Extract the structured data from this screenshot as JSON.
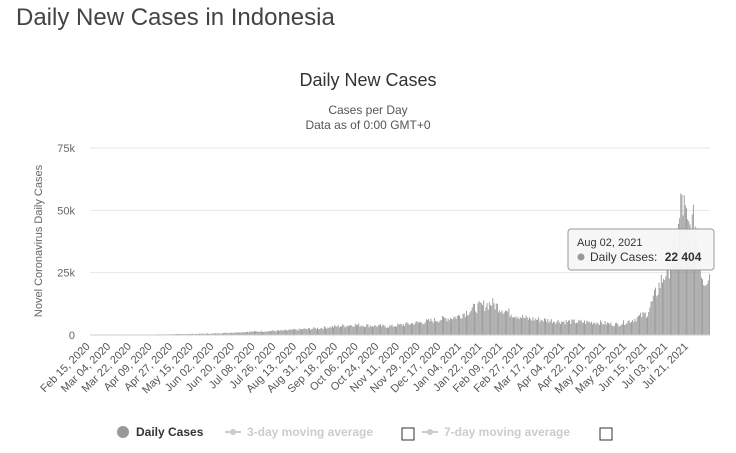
{
  "page": {
    "heading": "Daily New Cases in Indonesia"
  },
  "chart_data": {
    "type": "bar",
    "title": "Daily New Cases",
    "subtitle_line1": "Cases per Day",
    "subtitle_line2": "Data as of 0:00 GMT+0",
    "ylabel": "Novel Coronavirus Daily Cases",
    "xlabel": "",
    "ylim": [
      0,
      75000
    ],
    "y_ticks": [
      {
        "value": 0,
        "label": "0"
      },
      {
        "value": 25000,
        "label": "25k"
      },
      {
        "value": 50000,
        "label": "50k"
      },
      {
        "value": 75000,
        "label": "75k"
      }
    ],
    "x_start": "2020-02-15",
    "x_end": "2021-08-08",
    "x_tick_labels": [
      "Feb 15, 2020",
      "Mar 04, 2020",
      "Mar 22, 2020",
      "Apr 09, 2020",
      "Apr 27, 2020",
      "May 15, 2020",
      "Jun 02, 2020",
      "Jun 20, 2020",
      "Jul 08, 2020",
      "Jul 26, 2020",
      "Aug 13, 2020",
      "Aug 31, 2020",
      "Sep 18, 2020",
      "Oct 06, 2020",
      "Oct 24, 2020",
      "Nov 11, 2020",
      "Nov 29, 2020",
      "Dec 17, 2020",
      "Jan 04, 2021",
      "Jan 22, 2021",
      "Feb 09, 2021",
      "Feb 27, 2021",
      "Mar 17, 2021",
      "Apr 04, 2021",
      "Apr 22, 2021",
      "May 10, 2021",
      "May 28, 2021",
      "Jun 15, 2021",
      "Jul 03, 2021",
      "Jul 21, 2021"
    ],
    "grid": true,
    "legend_position": "bottom",
    "series": [
      {
        "name": "Daily Cases",
        "color": "#999999",
        "trend_anchors": [
          [
            "2020-02-15",
            0
          ],
          [
            "2020-03-04",
            10
          ],
          [
            "2020-04-01",
            150
          ],
          [
            "2020-05-01",
            350
          ],
          [
            "2020-06-01",
            600
          ],
          [
            "2020-07-01",
            1300
          ],
          [
            "2020-08-01",
            1800
          ],
          [
            "2020-09-01",
            2800
          ],
          [
            "2020-10-01",
            4200
          ],
          [
            "2020-11-01",
            3500
          ],
          [
            "2020-12-01",
            5300
          ],
          [
            "2020-12-31",
            7500
          ],
          [
            "2021-01-15",
            11000
          ],
          [
            "2021-01-30",
            13000
          ],
          [
            "2021-02-15",
            9000
          ],
          [
            "2021-03-01",
            6800
          ],
          [
            "2021-04-01",
            5500
          ],
          [
            "2021-05-01",
            5200
          ],
          [
            "2021-05-20",
            4300
          ],
          [
            "2021-06-01",
            6000
          ],
          [
            "2021-06-15",
            9000
          ],
          [
            "2021-06-25",
            20000
          ],
          [
            "2021-07-05",
            30000
          ],
          [
            "2021-07-12",
            42000
          ],
          [
            "2021-07-15",
            56000
          ],
          [
            "2021-07-20",
            43000
          ],
          [
            "2021-07-27",
            45000
          ],
          [
            "2021-08-02",
            22404
          ],
          [
            "2021-08-08",
            25000
          ]
        ]
      },
      {
        "name": "3-day moving average",
        "color": "#cccccc",
        "visible": false
      },
      {
        "name": "7-day moving average",
        "color": "#cccccc",
        "visible": false
      }
    ],
    "tooltip": {
      "date": "Aug 02, 2021",
      "series_label": "Daily Cases:",
      "value_label": "22 404",
      "value": 22404
    }
  }
}
